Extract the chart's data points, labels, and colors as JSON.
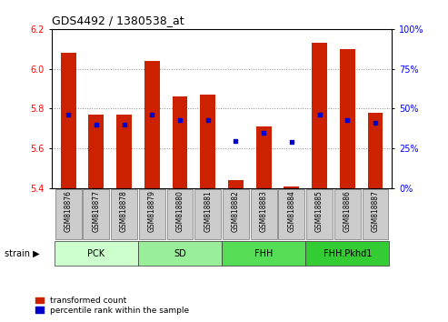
{
  "title": "GDS4492 / 1380538_at",
  "samples": [
    "GSM818876",
    "GSM818877",
    "GSM818878",
    "GSM818879",
    "GSM818880",
    "GSM818881",
    "GSM818882",
    "GSM818883",
    "GSM818884",
    "GSM818885",
    "GSM818886",
    "GSM818887"
  ],
  "red_values": [
    6.08,
    5.77,
    5.77,
    6.04,
    5.86,
    5.87,
    5.44,
    5.71,
    5.41,
    6.13,
    6.1,
    5.78
  ],
  "blue_values": [
    46,
    40,
    40,
    46,
    43,
    43,
    30,
    35,
    29,
    46,
    43,
    41
  ],
  "ylim_left": [
    5.4,
    6.2
  ],
  "ylim_right": [
    0,
    100
  ],
  "yticks_left": [
    5.4,
    5.6,
    5.8,
    6.0,
    6.2
  ],
  "yticks_right": [
    0,
    25,
    50,
    75,
    100
  ],
  "groups": [
    {
      "label": "PCK",
      "start": 0,
      "end": 2,
      "color": "#ccffcc"
    },
    {
      "label": "SD",
      "start": 3,
      "end": 5,
      "color": "#99ee99"
    },
    {
      "label": "FHH",
      "start": 6,
      "end": 8,
      "color": "#55dd55"
    },
    {
      "label": "FHH.Pkhd1",
      "start": 9,
      "end": 11,
      "color": "#33cc33"
    }
  ],
  "bar_color": "#cc2200",
  "dot_color": "#0000cc",
  "bar_width": 0.55,
  "base_value": 5.4,
  "grid_color": "#888888",
  "bg_color": "#ffffff",
  "tick_bg": "#cccccc",
  "legend_red": "transformed count",
  "legend_blue": "percentile rank within the sample",
  "strain_label": "strain"
}
